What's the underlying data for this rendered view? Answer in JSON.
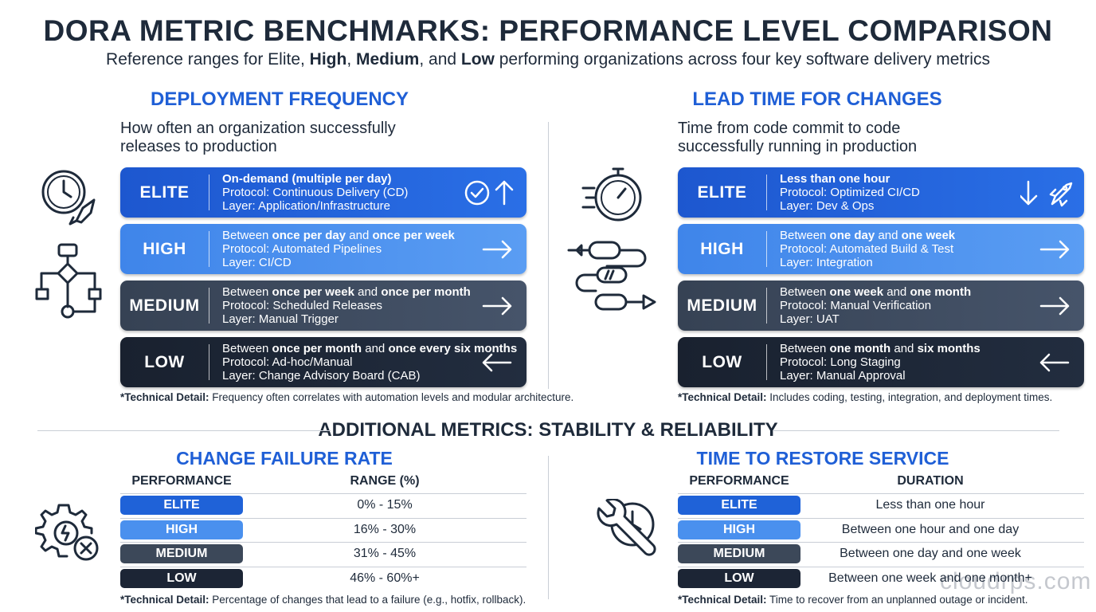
{
  "header": {
    "title": "DORA METRIC BENCHMARKS: PERFORMANCE LEVEL COMPARISON",
    "subtitle": [
      {
        "text": "Reference ranges for Elite, ",
        "bold": false
      },
      {
        "text": "High",
        "bold": true
      },
      {
        "text": ", ",
        "bold": false
      },
      {
        "text": "Medium",
        "bold": true
      },
      {
        "text": ", and ",
        "bold": false
      },
      {
        "text": "Low",
        "bold": true
      },
      {
        "text": " performing organizations across four key software delivery metrics",
        "bold": false
      }
    ]
  },
  "panels": [
    {
      "title": "DEPLOYMENT FREQUENCY",
      "description": "How often an organization successfully releases to production",
      "rows": [
        {
          "level": "ELITE",
          "headline": [
            {
              "text": "On-demand (multiple per day)",
              "bold": true
            }
          ],
          "protocol": "Protocol: Continuous Delivery (CD)",
          "layer": "Layer: Application/Infrastructure"
        },
        {
          "level": "HIGH",
          "headline": [
            {
              "text": "Between ",
              "bold": false
            },
            {
              "text": "once per day",
              "bold": true
            },
            {
              "text": " and ",
              "bold": false
            },
            {
              "text": "once per week",
              "bold": true
            }
          ],
          "protocol": "Protocol: Automated Pipelines",
          "layer": "Layer: CI/CD"
        },
        {
          "level": "MEDIUM",
          "headline": [
            {
              "text": "Between ",
              "bold": false
            },
            {
              "text": "once per week",
              "bold": true
            },
            {
              "text": " and ",
              "bold": false
            },
            {
              "text": "once per month",
              "bold": true
            }
          ],
          "protocol": "Protocol: Scheduled Releases",
          "layer": "Layer: Manual Trigger"
        },
        {
          "level": "LOW",
          "headline": [
            {
              "text": "Between ",
              "bold": false
            },
            {
              "text": "once per month",
              "bold": true
            },
            {
              "text": " and ",
              "bold": false
            },
            {
              "text": "once every six months",
              "bold": true
            }
          ],
          "protocol": "Protocol: Ad-hoc/Manual",
          "layer": "Layer: Change Advisory Board (CAB)"
        }
      ],
      "note": [
        {
          "text": "*Technical Detail:",
          "bold": true
        },
        {
          "text": " Frequency often correlates with automation levels and modular architecture.",
          "bold": false
        }
      ]
    },
    {
      "title": "LEAD TIME FOR CHANGES",
      "description": "Time from code commit to code successfully running in production",
      "rows": [
        {
          "level": "ELITE",
          "headline": [
            {
              "text": "Less than one hour",
              "bold": true
            }
          ],
          "protocol": "Protocol: Optimized CI/CD",
          "layer": "Layer: Dev & Ops"
        },
        {
          "level": "HIGH",
          "headline": [
            {
              "text": "Between ",
              "bold": false
            },
            {
              "text": "one day",
              "bold": true
            },
            {
              "text": " and ",
              "bold": false
            },
            {
              "text": "one week",
              "bold": true
            }
          ],
          "protocol": "Protocol: Automated Build & Test",
          "layer": "Layer: Integration"
        },
        {
          "level": "MEDIUM",
          "headline": [
            {
              "text": "Between ",
              "bold": false
            },
            {
              "text": "one week",
              "bold": true
            },
            {
              "text": " and ",
              "bold": false
            },
            {
              "text": "one month",
              "bold": true
            }
          ],
          "protocol": "Protocol: Manual Verification",
          "layer": "Layer: UAT"
        },
        {
          "level": "LOW",
          "headline": [
            {
              "text": "Between ",
              "bold": false
            },
            {
              "text": "one month",
              "bold": true
            },
            {
              "text": " and ",
              "bold": false
            },
            {
              "text": "six months",
              "bold": true
            }
          ],
          "protocol": "Protocol: Long Staging",
          "layer": "Layer: Manual Approval"
        }
      ],
      "note": [
        {
          "text": "*Technical Detail:",
          "bold": true
        },
        {
          "text": " Includes coding, testing, integration, and deployment times.",
          "bold": false
        }
      ]
    }
  ],
  "section_title": "ADDITIONAL METRICS: STABILITY & RELIABILITY",
  "tables": [
    {
      "title": "CHANGE FAILURE RATE",
      "columns": [
        "PERFORMANCE",
        "RANGE (%)"
      ],
      "rows": [
        [
          "ELITE",
          "0% - 15%"
        ],
        [
          "HIGH",
          "16% - 30%"
        ],
        [
          "MEDIUM",
          "31% - 45%"
        ],
        [
          "LOW",
          "46% - 60%+"
        ]
      ],
      "note": [
        {
          "text": "*Technical Detail:",
          "bold": true
        },
        {
          "text": " Percentage of changes that lead to a failure (e.g., hotfix, rollback).",
          "bold": false
        }
      ]
    },
    {
      "title": "TIME TO RESTORE SERVICE",
      "columns": [
        "PERFORMANCE",
        "DURATION"
      ],
      "rows": [
        [
          "ELITE",
          "Less than one hour"
        ],
        [
          "HIGH",
          "Between one hour and one day"
        ],
        [
          "MEDIUM",
          "Between one day and one week"
        ],
        [
          "LOW",
          "Between one week and one month+"
        ]
      ],
      "note": [
        {
          "text": "*Technical Detail:",
          "bold": true
        },
        {
          "text": " Time to recover from an unplanned outage or incident.",
          "bold": false
        }
      ]
    }
  ],
  "watermark": "cloudrps.com"
}
